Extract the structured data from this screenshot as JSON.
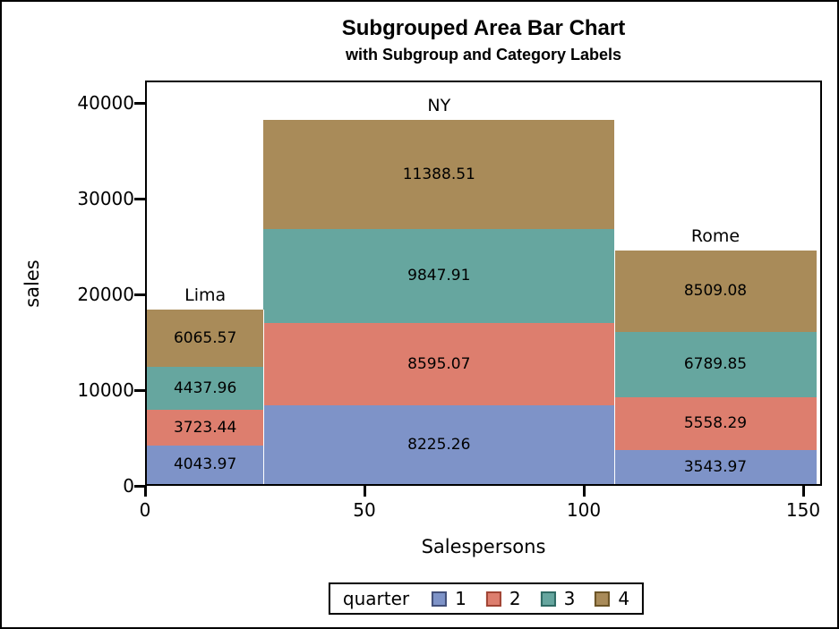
{
  "chart_data": {
    "type": "bar",
    "variant": "variable-width stacked area bar chart",
    "title": "Subgrouped Area Bar Chart",
    "subtitle": "with Subgroup and Category Labels",
    "xlabel": "Salespersons",
    "ylabel": "sales",
    "x_ticks": [
      0,
      50,
      100,
      150
    ],
    "y_ticks": [
      0,
      10000,
      20000,
      30000,
      40000
    ],
    "xlim": [
      0,
      154
    ],
    "ylim": [
      0,
      42300
    ],
    "grid": false,
    "legend": {
      "title": "quarter",
      "position": "bottom-center",
      "entries": [
        "1",
        "2",
        "3",
        "4"
      ]
    },
    "quarters": [
      {
        "label": "1",
        "fill": "#7E93C8",
        "edge": "#424F79"
      },
      {
        "label": "2",
        "fill": "#DD7E6E",
        "edge": "#A04434"
      },
      {
        "label": "3",
        "fill": "#66A69F",
        "edge": "#2F6B64"
      },
      {
        "label": "4",
        "fill": "#A98B59",
        "edge": "#6B5426"
      }
    ],
    "categories": [
      {
        "label": "Lima",
        "x0": 0,
        "x1": 27,
        "segments": [
          4043.97,
          3723.44,
          4437.96,
          6065.57
        ],
        "total": 18270.94
      },
      {
        "label": "NY",
        "x0": 27,
        "x1": 107,
        "segments": [
          8225.26,
          8595.07,
          9847.91,
          11388.51
        ],
        "total": 38056.75
      },
      {
        "label": "Rome",
        "x0": 107,
        "x1": 153,
        "segments": [
          3543.97,
          5558.29,
          6789.85,
          8509.08
        ],
        "total": 24401.19
      }
    ]
  }
}
